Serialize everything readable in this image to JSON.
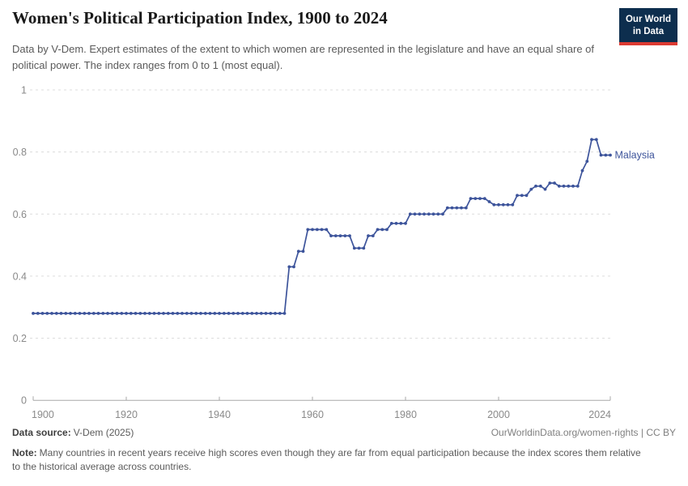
{
  "header": {
    "title": "Women's Political Participation Index, 1900 to 2024",
    "subtitle": "Data by V-Dem. Expert estimates of the extent to which women are represented in the legislature and have an equal share of political power. The index ranges from 0 to 1 (most equal).",
    "logo": {
      "line1": "Our World",
      "line2": "in Data",
      "bg_color": "#0d2e4e",
      "accent_color": "#dc3a32"
    }
  },
  "chart_data": {
    "type": "line",
    "title": "Women's Political Participation Index, 1900 to 2024",
    "xlabel": "",
    "ylabel": "",
    "xlim": [
      1900,
      2024
    ],
    "ylim": [
      0,
      1
    ],
    "x_ticks": [
      1900,
      1920,
      1940,
      1960,
      1980,
      2000,
      2024
    ],
    "y_ticks": [
      0,
      0.2,
      0.4,
      0.6,
      0.8,
      1
    ],
    "grid": "horizontal dashed",
    "legend_position": "end-of-line label",
    "series": [
      {
        "name": "Malaysia",
        "color": "#3d549b",
        "points": [
          [
            1900,
            0.28
          ],
          [
            1901,
            0.28
          ],
          [
            1902,
            0.28
          ],
          [
            1903,
            0.28
          ],
          [
            1904,
            0.28
          ],
          [
            1905,
            0.28
          ],
          [
            1906,
            0.28
          ],
          [
            1907,
            0.28
          ],
          [
            1908,
            0.28
          ],
          [
            1909,
            0.28
          ],
          [
            1910,
            0.28
          ],
          [
            1911,
            0.28
          ],
          [
            1912,
            0.28
          ],
          [
            1913,
            0.28
          ],
          [
            1914,
            0.28
          ],
          [
            1915,
            0.28
          ],
          [
            1916,
            0.28
          ],
          [
            1917,
            0.28
          ],
          [
            1918,
            0.28
          ],
          [
            1919,
            0.28
          ],
          [
            1920,
            0.28
          ],
          [
            1921,
            0.28
          ],
          [
            1922,
            0.28
          ],
          [
            1923,
            0.28
          ],
          [
            1924,
            0.28
          ],
          [
            1925,
            0.28
          ],
          [
            1926,
            0.28
          ],
          [
            1927,
            0.28
          ],
          [
            1928,
            0.28
          ],
          [
            1929,
            0.28
          ],
          [
            1930,
            0.28
          ],
          [
            1931,
            0.28
          ],
          [
            1932,
            0.28
          ],
          [
            1933,
            0.28
          ],
          [
            1934,
            0.28
          ],
          [
            1935,
            0.28
          ],
          [
            1936,
            0.28
          ],
          [
            1937,
            0.28
          ],
          [
            1938,
            0.28
          ],
          [
            1939,
            0.28
          ],
          [
            1940,
            0.28
          ],
          [
            1941,
            0.28
          ],
          [
            1942,
            0.28
          ],
          [
            1943,
            0.28
          ],
          [
            1944,
            0.28
          ],
          [
            1945,
            0.28
          ],
          [
            1946,
            0.28
          ],
          [
            1947,
            0.28
          ],
          [
            1948,
            0.28
          ],
          [
            1949,
            0.28
          ],
          [
            1950,
            0.28
          ],
          [
            1951,
            0.28
          ],
          [
            1952,
            0.28
          ],
          [
            1953,
            0.28
          ],
          [
            1954,
            0.28
          ],
          [
            1955,
            0.43
          ],
          [
            1956,
            0.43
          ],
          [
            1957,
            0.48
          ],
          [
            1958,
            0.48
          ],
          [
            1959,
            0.55
          ],
          [
            1960,
            0.55
          ],
          [
            1961,
            0.55
          ],
          [
            1962,
            0.55
          ],
          [
            1963,
            0.55
          ],
          [
            1964,
            0.53
          ],
          [
            1965,
            0.53
          ],
          [
            1966,
            0.53
          ],
          [
            1967,
            0.53
          ],
          [
            1968,
            0.53
          ],
          [
            1969,
            0.49
          ],
          [
            1970,
            0.49
          ],
          [
            1971,
            0.49
          ],
          [
            1972,
            0.53
          ],
          [
            1973,
            0.53
          ],
          [
            1974,
            0.55
          ],
          [
            1975,
            0.55
          ],
          [
            1976,
            0.55
          ],
          [
            1977,
            0.57
          ],
          [
            1978,
            0.57
          ],
          [
            1979,
            0.57
          ],
          [
            1980,
            0.57
          ],
          [
            1981,
            0.6
          ],
          [
            1982,
            0.6
          ],
          [
            1983,
            0.6
          ],
          [
            1984,
            0.6
          ],
          [
            1985,
            0.6
          ],
          [
            1986,
            0.6
          ],
          [
            1987,
            0.6
          ],
          [
            1988,
            0.6
          ],
          [
            1989,
            0.62
          ],
          [
            1990,
            0.62
          ],
          [
            1991,
            0.62
          ],
          [
            1992,
            0.62
          ],
          [
            1993,
            0.62
          ],
          [
            1994,
            0.65
          ],
          [
            1995,
            0.65
          ],
          [
            1996,
            0.65
          ],
          [
            1997,
            0.65
          ],
          [
            1998,
            0.64
          ],
          [
            1999,
            0.63
          ],
          [
            2000,
            0.63
          ],
          [
            2001,
            0.63
          ],
          [
            2002,
            0.63
          ],
          [
            2003,
            0.63
          ],
          [
            2004,
            0.66
          ],
          [
            2005,
            0.66
          ],
          [
            2006,
            0.66
          ],
          [
            2007,
            0.68
          ],
          [
            2008,
            0.69
          ],
          [
            2009,
            0.69
          ],
          [
            2010,
            0.68
          ],
          [
            2011,
            0.7
          ],
          [
            2012,
            0.7
          ],
          [
            2013,
            0.69
          ],
          [
            2014,
            0.69
          ],
          [
            2015,
            0.69
          ],
          [
            2016,
            0.69
          ],
          [
            2017,
            0.69
          ],
          [
            2018,
            0.74
          ],
          [
            2019,
            0.77
          ],
          [
            2020,
            0.84
          ],
          [
            2021,
            0.84
          ],
          [
            2022,
            0.79
          ],
          [
            2023,
            0.79
          ],
          [
            2024,
            0.79
          ]
        ]
      }
    ]
  },
  "footer": {
    "data_source_label": "Data source:",
    "data_source_value": "V-Dem (2025)",
    "attribution": "OurWorldinData.org/women-rights | CC BY",
    "note_label": "Note:",
    "note_text": "Many countries in recent years receive high scores even though they are far from equal participation because the index scores them relative to the historical average across countries."
  }
}
